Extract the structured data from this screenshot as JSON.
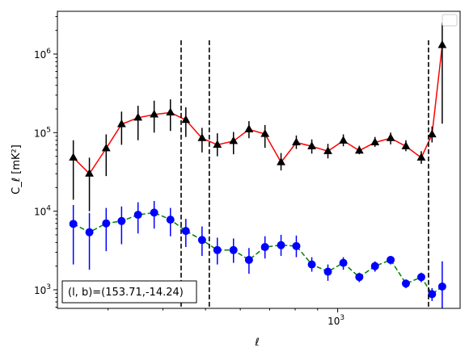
{
  "chart_data": {
    "type": "scatter",
    "title": "",
    "xlabel": "ℓ",
    "ylabel": "C_ℓ  [mK²]",
    "xscale": "log",
    "yscale": "log",
    "xlim": [
      230,
      1900
    ],
    "ylim": [
      580,
      3500000
    ],
    "x_tick_labels": [
      {
        "base": "10",
        "exp": "3",
        "value": 1000
      }
    ],
    "y_tick_labels": [
      {
        "base": "10",
        "exp": "3",
        "value": 1000
      },
      {
        "base": "10",
        "exp": "4",
        "value": 10000
      },
      {
        "base": "10",
        "exp": "5",
        "value": 100000
      },
      {
        "base": "10",
        "exp": "6",
        "value": 1000000
      }
    ],
    "grid": false,
    "legend": {
      "position": "top-right",
      "entries": []
    },
    "vlines": [
      440,
      510,
      1610
    ],
    "annotation": {
      "text": "(l, b)=(153.71,-14.24)",
      "position": "bottom-left"
    },
    "series": [
      {
        "marker": "triangle",
        "color": "#000000",
        "errorbar_color": "#000000",
        "line_color": "#ff0000",
        "line_style": "solid",
        "x": [
          250,
          272,
          297,
          322,
          351,
          382,
          416,
          451,
          491,
          532,
          579,
          628,
          683,
          743,
          805,
          873,
          950,
          1030,
          1120,
          1216,
          1320,
          1430,
          1550,
          1640,
          1730
        ],
        "y": [
          48000,
          30000,
          63000,
          128000,
          155000,
          170000,
          180000,
          145000,
          85000,
          70000,
          78000,
          110000,
          96000,
          42000,
          75000,
          67000,
          58000,
          79000,
          59000,
          75000,
          85000,
          67000,
          48000,
          95000,
          1300000
        ],
        "yerr_low": [
          14000,
          10000,
          28000,
          70000,
          80000,
          100000,
          105000,
          88000,
          56000,
          50000,
          53000,
          85000,
          64000,
          33000,
          62000,
          54000,
          47000,
          67000,
          53000,
          66000,
          71000,
          58000,
          40000,
          75000,
          130000
        ],
        "yerr_high": [
          80000,
          48000,
          95000,
          185000,
          220000,
          255000,
          265000,
          210000,
          115000,
          98000,
          102000,
          140000,
          125000,
          55000,
          92000,
          82000,
          72000,
          95000,
          68000,
          88000,
          100000,
          80000,
          58000,
          120000,
          2500000
        ]
      },
      {
        "marker": "circle",
        "color": "#0000ff",
        "errorbar_color": "#0000ff",
        "line_color": "#008000",
        "line_style": "dashed",
        "x": [
          250,
          272,
          297,
          322,
          351,
          382,
          416,
          451,
          491,
          532,
          579,
          628,
          683,
          743,
          805,
          873,
          950,
          1030,
          1120,
          1216,
          1320,
          1430,
          1550,
          1640,
          1730
        ],
        "y": [
          6900,
          5400,
          7000,
          7500,
          9000,
          9600,
          7800,
          5600,
          4300,
          3200,
          3200,
          2400,
          3500,
          3700,
          3600,
          2100,
          1700,
          2200,
          1450,
          2000,
          2400,
          1200,
          1450,
          880,
          1100
        ],
        "yerr_low": [
          2100,
          1800,
          3100,
          3800,
          5200,
          6000,
          4800,
          3500,
          2700,
          2100,
          2200,
          1600,
          2500,
          2700,
          2600,
          1700,
          1300,
          1800,
          1250,
          1700,
          2100,
          1050,
          1250,
          720,
          580
        ],
        "yerr_high": [
          12000,
          9500,
          11000,
          11500,
          13000,
          13500,
          11000,
          8000,
          6400,
          4600,
          4500,
          3400,
          4800,
          5000,
          4900,
          2600,
          2100,
          2600,
          1650,
          2300,
          2700,
          1350,
          1650,
          1050,
          2300
        ]
      }
    ]
  }
}
